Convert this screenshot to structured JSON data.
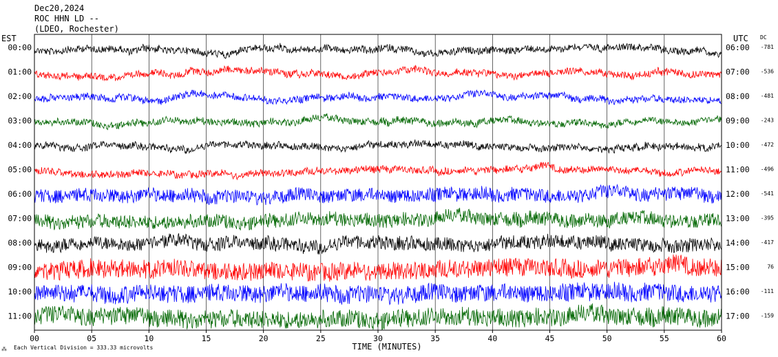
{
  "header": {
    "date": "Dec20,2024",
    "station": "ROC HHN LD --",
    "network": "(LDEO, Rochester)"
  },
  "left_tz": "EST",
  "right_tz": "UTC",
  "dc_label": "DC",
  "footer_note": "Each Vertical Division =  333.33 microvolts",
  "chart_data": {
    "type": "line",
    "xlabel": "TIME (MINUTES)",
    "xlim": [
      0,
      60
    ],
    "x_ticks": [
      "00",
      "05",
      "10",
      "15",
      "20",
      "25",
      "30",
      "35",
      "40",
      "45",
      "50",
      "55",
      "60"
    ],
    "colors": [
      "#000000",
      "#ff0000",
      "#0000ff",
      "#006600"
    ],
    "rows": [
      {
        "est": "00:00",
        "utc": "06:00",
        "dc": "-781"
      },
      {
        "est": "01:00",
        "utc": "07:00",
        "dc": "-536"
      },
      {
        "est": "02:00",
        "utc": "08:00",
        "dc": "-481"
      },
      {
        "est": "03:00",
        "utc": "09:00",
        "dc": "-243"
      },
      {
        "est": "04:00",
        "utc": "10:00",
        "dc": "-472"
      },
      {
        "est": "05:00",
        "utc": "11:00",
        "dc": "-496"
      },
      {
        "est": "06:00",
        "utc": "12:00",
        "dc": "-541"
      },
      {
        "est": "07:00",
        "utc": "13:00",
        "dc": "-395"
      },
      {
        "est": "08:00",
        "utc": "14:00",
        "dc": "-417"
      },
      {
        "est": "09:00",
        "utc": "15:00",
        "dc": "76"
      },
      {
        "est": "10:00",
        "utc": "16:00",
        "dc": "-111"
      },
      {
        "est": "11:00",
        "utc": "17:00",
        "dc": "-159"
      }
    ]
  }
}
